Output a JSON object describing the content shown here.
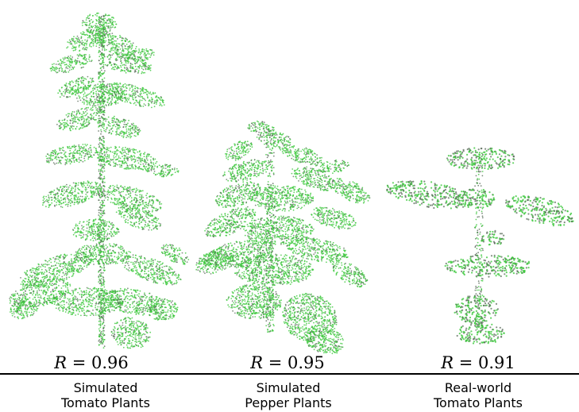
{
  "panels": [
    {
      "id": "sim-tomato",
      "r_symbol": "R",
      "r_value": "= 0.96",
      "caption_line1": "Simulated",
      "caption_line2": "Tomato Plants"
    },
    {
      "id": "sim-pepper",
      "r_symbol": "R",
      "r_value": "= 0.95",
      "caption_line1": "Simulated",
      "caption_line2": "Pepper Plants"
    },
    {
      "id": "real-tomato",
      "r_symbol": "R",
      "r_value": "= 0.91",
      "caption_line1": "Real-world",
      "caption_line2": "Tomato Plants"
    }
  ],
  "colors": {
    "point_green": "#3cc83c",
    "point_dark": "#5a6b5a",
    "divider": "#000000"
  }
}
